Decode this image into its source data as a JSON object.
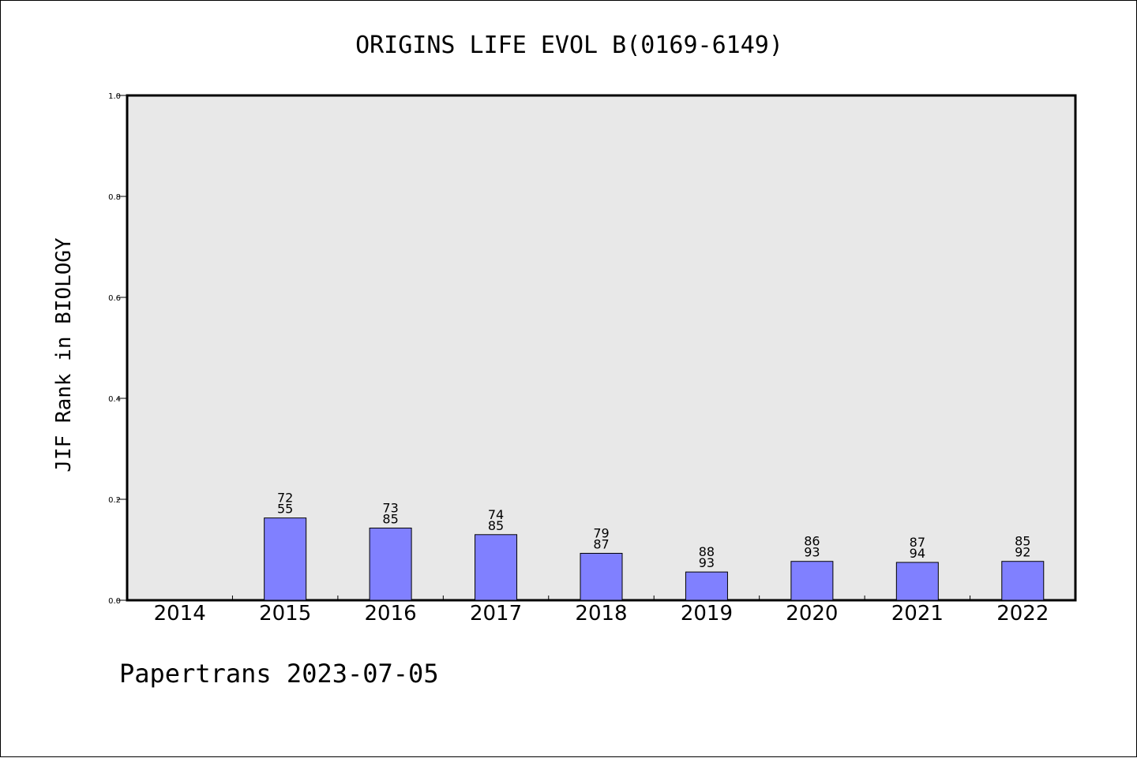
{
  "chart_data": {
    "type": "bar",
    "title": "ORIGINS LIFE EVOL B(0169-6149)",
    "xlabel": "",
    "ylabel": "JIF Rank in BIOLOGY",
    "ylim": [
      0,
      1.0
    ],
    "yticks": [
      "0.0",
      "0.2",
      "0.4",
      "0.6",
      "0.8",
      "1.0"
    ],
    "ytick_values": [
      0,
      0.2,
      0.4,
      0.6,
      0.8,
      1.0
    ],
    "categories": [
      "2014",
      "2015",
      "2016",
      "2017",
      "2018",
      "2019",
      "2020",
      "2021",
      "2022"
    ],
    "values": [
      null,
      0.163,
      0.143,
      0.13,
      0.093,
      0.056,
      0.077,
      0.075,
      0.077
    ],
    "bar_labels": [
      null,
      [
        "72",
        "55"
      ],
      [
        "73",
        "85"
      ],
      [
        "74",
        "85"
      ],
      [
        "79",
        "87"
      ],
      [
        "88",
        "93"
      ],
      [
        "86",
        "93"
      ],
      [
        "87",
        "94"
      ],
      [
        "85",
        "92"
      ]
    ],
    "grid": false,
    "colors": {
      "bar": "#8080ff",
      "plot_background": "#e8e8e8",
      "axis": "#000000"
    }
  },
  "footer": {
    "text": "Papertrans 2023-07-05"
  }
}
